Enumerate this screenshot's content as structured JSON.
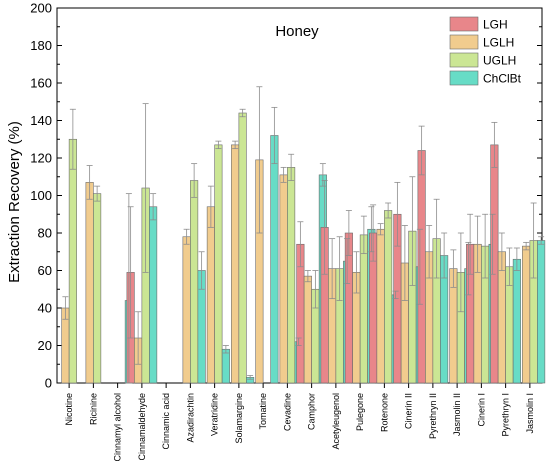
{
  "chart_data": {
    "type": "bar",
    "title": "Honey",
    "ylabel": "Extraction Recovery (%)",
    "xlabel": "",
    "ylim": [
      0,
      200
    ],
    "yticks": [
      0,
      20,
      40,
      60,
      80,
      100,
      120,
      140,
      160,
      180,
      200
    ],
    "legend_position": "top-right",
    "grid": false,
    "categories": [
      "Nicotine",
      "Ricinine",
      "Cinnamyl alcohol",
      "Cinnamaldehyde",
      "Cinnamic acid",
      "Azadirachtin",
      "Veratridine",
      "Solamargine",
      "Tomatine",
      "Cevadine",
      "Camphor",
      "Acetyleugenol",
      "Pulegone",
      "Rotenone",
      "Cinerin II",
      "Pyrethryn II",
      "Jasmolin II",
      "Cinerin I",
      "Pyrethryn I",
      "Jasmolin I"
    ],
    "series": [
      {
        "name": "LGH",
        "color": "#e8868a",
        "values": [
          null,
          null,
          null,
          59,
          null,
          null,
          null,
          null,
          null,
          null,
          74,
          83,
          80,
          80,
          90,
          124,
          null,
          74,
          127,
          null
        ],
        "errors": [
          null,
          null,
          null,
          35,
          null,
          null,
          null,
          null,
          null,
          null,
          12,
          25,
          12,
          15,
          17,
          13,
          null,
          16,
          12,
          null
        ]
      },
      {
        "name": "LGLH",
        "color": "#f1cc8e",
        "values": [
          40,
          107,
          null,
          24,
          null,
          78,
          94,
          127,
          119,
          111,
          57,
          61,
          59,
          82,
          64,
          70,
          61,
          74,
          70,
          73
        ],
        "errors": [
          6,
          9,
          null,
          14,
          null,
          4,
          11,
          2,
          39,
          4,
          3,
          16,
          11,
          3,
          20,
          14,
          10,
          15,
          10,
          2
        ]
      },
      {
        "name": "UGLH",
        "color": "#cbe694",
        "values": [
          130,
          101,
          null,
          104,
          null,
          108,
          127,
          144,
          null,
          115,
          50,
          61,
          79,
          92,
          81,
          77,
          59,
          73,
          62,
          76
        ],
        "errors": [
          16,
          4,
          null,
          45,
          null,
          9,
          2,
          2,
          null,
          7,
          10,
          17,
          10,
          4,
          29,
          21,
          21,
          17,
          10,
          20
        ]
      },
      {
        "name": "ChClBt",
        "color": "#67dcc6",
        "values": [
          null,
          null,
          44,
          94,
          null,
          60,
          18,
          3,
          132,
          22,
          111,
          65,
          82,
          47,
          62,
          68,
          61,
          74,
          66,
          76
        ],
        "errors": [
          null,
          null,
          57,
          7,
          null,
          10,
          2,
          1,
          15,
          2,
          6,
          12,
          12,
          2,
          20,
          12,
          14,
          16,
          6,
          2
        ]
      }
    ]
  }
}
